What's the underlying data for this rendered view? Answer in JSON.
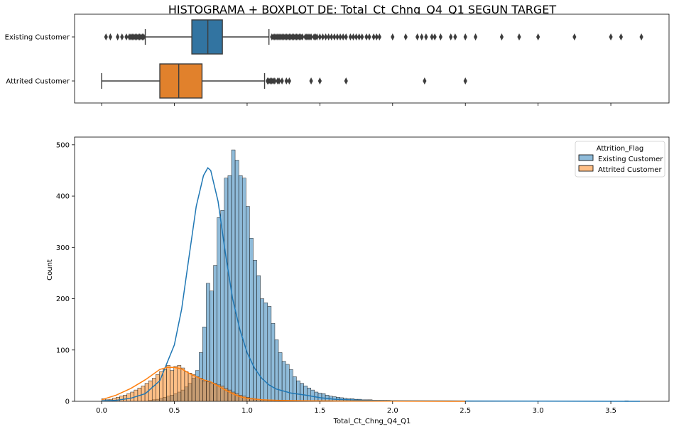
{
  "title": "HISTOGRAMA + BOXPLOT DE: Total_Ct_Chng_Q4_Q1 SEGUN TARGET",
  "colors": {
    "existing": "#1f77b4",
    "attrited": "#ff7f0e",
    "existing_box": "#3274a1",
    "attrited_box": "#e1812c"
  },
  "chart_data": [
    {
      "type": "boxplot",
      "categories": [
        "Existing Customer",
        "Attrited Customer"
      ],
      "xlim": [
        -0.186,
        3.9
      ],
      "series": [
        {
          "name": "Existing Customer",
          "whisker_low": 0.3,
          "q1": 0.62,
          "median": 0.73,
          "q3": 0.83,
          "whisker_high": 1.15,
          "outliers": [
            0.03,
            0.06,
            0.11,
            0.14,
            0.17,
            0.19,
            0.2,
            0.21,
            0.22,
            0.23,
            0.24,
            0.25,
            0.26,
            0.27,
            0.28,
            0.29,
            1.17,
            1.18,
            1.19,
            1.2,
            1.21,
            1.22,
            1.23,
            1.24,
            1.25,
            1.26,
            1.27,
            1.28,
            1.29,
            1.3,
            1.31,
            1.32,
            1.33,
            1.34,
            1.35,
            1.36,
            1.37,
            1.38,
            1.4,
            1.41,
            1.42,
            1.43,
            1.44,
            1.46,
            1.47,
            1.48,
            1.5,
            1.52,
            1.54,
            1.56,
            1.58,
            1.6,
            1.62,
            1.64,
            1.66,
            1.68,
            1.71,
            1.73,
            1.75,
            1.77,
            1.79,
            1.82,
            1.84,
            1.87,
            1.89,
            1.91,
            2.0,
            2.09,
            2.17,
            2.2,
            2.23,
            2.27,
            2.29,
            2.33,
            2.4,
            2.43,
            2.5,
            2.57,
            2.75,
            2.87,
            3.0,
            3.25,
            3.5,
            3.57,
            3.71
          ]
        },
        {
          "name": "Attrited Customer",
          "whisker_low": 0.0,
          "q1": 0.4,
          "median": 0.53,
          "q3": 0.69,
          "whisker_high": 1.12,
          "outliers": [
            1.14,
            1.15,
            1.16,
            1.17,
            1.18,
            1.19,
            1.21,
            1.22,
            1.24,
            1.27,
            1.29,
            1.44,
            1.5,
            1.68,
            2.22,
            2.5
          ]
        }
      ]
    },
    {
      "type": "histogram",
      "xlabel": "Total_Ct_Chng_Q4_Q1",
      "ylabel": "Count",
      "xlim": [
        -0.186,
        3.9
      ],
      "ylim": [
        0,
        515
      ],
      "x_ticks": [
        "0.0",
        "0.5",
        "1.0",
        "1.5",
        "2.0",
        "2.5",
        "3.0",
        "3.5"
      ],
      "y_ticks": [
        "0",
        "100",
        "200",
        "300",
        "400",
        "500"
      ],
      "legend_title": "Attrition_Flag",
      "legend_position": "upper right",
      "bin_start": 0.0,
      "bin_width": 0.0248,
      "series": [
        {
          "name": "Existing Customer",
          "counts": [
            0,
            0,
            0,
            0,
            0,
            0,
            0,
            0,
            0,
            0,
            0,
            0,
            0,
            2,
            3,
            4,
            6,
            8,
            10,
            12,
            15,
            18,
            22,
            28,
            35,
            45,
            60,
            95,
            145,
            230,
            215,
            265,
            358,
            372,
            435,
            440,
            490,
            470,
            440,
            435,
            380,
            318,
            275,
            245,
            200,
            192,
            185,
            152,
            120,
            95,
            78,
            72,
            62,
            48,
            40,
            35,
            30,
            26,
            22,
            18,
            16,
            15,
            12,
            10,
            9,
            8,
            7,
            6,
            5,
            5,
            4,
            4,
            3,
            3,
            3,
            2,
            2,
            2,
            2,
            2,
            1,
            1,
            1,
            1,
            1,
            1,
            1,
            1,
            1,
            1,
            1,
            1,
            1,
            1,
            0,
            0,
            1,
            0,
            0,
            1,
            0,
            0,
            1,
            0,
            0,
            0,
            0,
            0,
            1,
            0,
            0,
            0,
            0,
            0,
            0,
            0,
            0,
            0,
            0,
            0,
            0,
            1,
            0,
            0,
            0,
            0,
            0,
            0,
            0,
            0,
            0,
            0,
            0,
            0,
            0,
            0,
            0,
            0,
            0,
            0,
            0,
            0,
            0,
            0,
            0,
            1
          ],
          "kde": [
            [
              0.0,
              1
            ],
            [
              0.1,
              2
            ],
            [
              0.2,
              6
            ],
            [
              0.3,
              15
            ],
            [
              0.4,
              40
            ],
            [
              0.5,
              110
            ],
            [
              0.55,
              180
            ],
            [
              0.6,
              280
            ],
            [
              0.65,
              380
            ],
            [
              0.7,
              440
            ],
            [
              0.73,
              455
            ],
            [
              0.75,
              450
            ],
            [
              0.8,
              390
            ],
            [
              0.85,
              290
            ],
            [
              0.9,
              200
            ],
            [
              0.95,
              140
            ],
            [
              1.0,
              95
            ],
            [
              1.05,
              65
            ],
            [
              1.1,
              45
            ],
            [
              1.15,
              32
            ],
            [
              1.2,
              24
            ],
            [
              1.3,
              16
            ],
            [
              1.4,
              12
            ],
            [
              1.5,
              7
            ],
            [
              1.6,
              4
            ],
            [
              1.8,
              2
            ],
            [
              2.0,
              1
            ],
            [
              2.5,
              0.5
            ],
            [
              3.7,
              0
            ]
          ]
        },
        {
          "name": "Attrited Customer",
          "counts": [
            5,
            3,
            4,
            6,
            8,
            10,
            12,
            15,
            18,
            22,
            26,
            30,
            35,
            40,
            45,
            52,
            58,
            62,
            70,
            60,
            68,
            70,
            65,
            58,
            55,
            52,
            48,
            45,
            40,
            38,
            36,
            35,
            32,
            30,
            25,
            22,
            18,
            15,
            12,
            10,
            8,
            6,
            5,
            4,
            3,
            3,
            2,
            2,
            2,
            1,
            1,
            1,
            1,
            1,
            1,
            1,
            1,
            0,
            1,
            0,
            0,
            0,
            0,
            1,
            0,
            0,
            0,
            0,
            0,
            0,
            0,
            0,
            0,
            0,
            0,
            0,
            0,
            0,
            0,
            0,
            0,
            0,
            0,
            0,
            0,
            0,
            0,
            0,
            0,
            0,
            0,
            0,
            0,
            0,
            0,
            0,
            0,
            0,
            0,
            0,
            0,
            0,
            1
          ],
          "kde": [
            [
              0.0,
              3
            ],
            [
              0.1,
              12
            ],
            [
              0.2,
              25
            ],
            [
              0.3,
              42
            ],
            [
              0.4,
              62
            ],
            [
              0.45,
              66
            ],
            [
              0.5,
              66
            ],
            [
              0.55,
              63
            ],
            [
              0.6,
              55
            ],
            [
              0.65,
              48
            ],
            [
              0.7,
              42
            ],
            [
              0.75,
              38
            ],
            [
              0.8,
              30
            ],
            [
              0.85,
              22
            ],
            [
              0.9,
              15
            ],
            [
              0.95,
              9
            ],
            [
              1.0,
              6
            ],
            [
              1.1,
              3
            ],
            [
              1.2,
              2
            ],
            [
              1.4,
              1
            ],
            [
              1.7,
              0.5
            ],
            [
              2.5,
              0
            ]
          ]
        }
      ]
    }
  ]
}
